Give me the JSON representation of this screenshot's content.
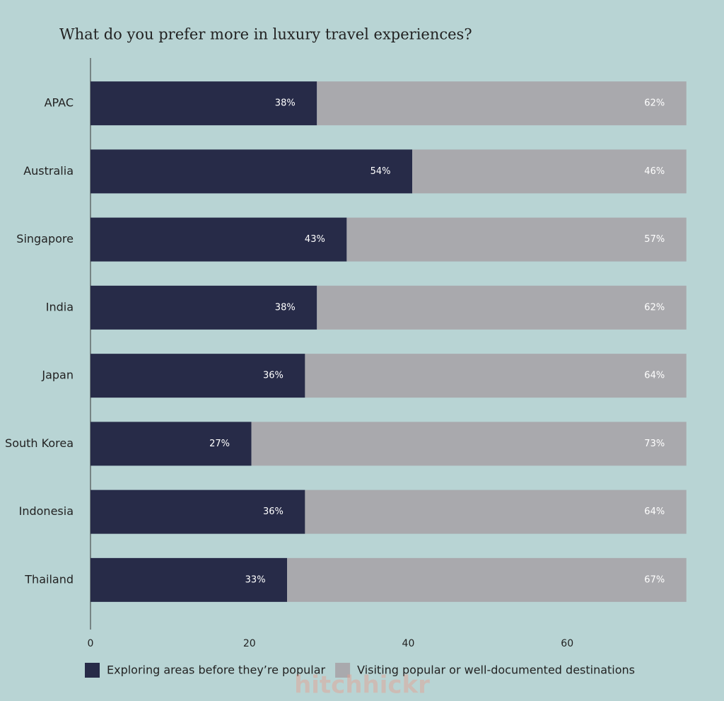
{
  "chart_data": {
    "type": "stacked-bar-horizontal",
    "title": "What do you prefer more in luxury travel experiences?",
    "categories": [
      "APAC",
      "Australia",
      "Singapore",
      "India",
      "Japan",
      "South Korea",
      "Indonesia",
      "Thailand"
    ],
    "series": [
      {
        "name": "Exploring areas before they’re popular",
        "color": "#272b48",
        "values": [
          28.5,
          40.5,
          32.25,
          28.5,
          27,
          20.25,
          27,
          24.75
        ],
        "value_labels": [
          "38%",
          "54%",
          "43%",
          "38%",
          "36%",
          "27%",
          "36%",
          "33%"
        ]
      },
      {
        "name": "Visiting popular or well-documented destinations",
        "color": "#a9a9ad",
        "values": [
          46.5,
          34.5,
          42.75,
          46.5,
          48,
          54.75,
          48,
          50.25
        ],
        "value_labels": [
          "62%",
          "46%",
          "57%",
          "62%",
          "64%",
          "73%",
          "64%",
          "67%"
        ]
      }
    ],
    "xlim": [
      0,
      76
    ],
    "xticks": [
      0,
      20,
      40,
      60
    ],
    "grid": false,
    "legend": "bottom",
    "watermark": "hitchhickr"
  }
}
